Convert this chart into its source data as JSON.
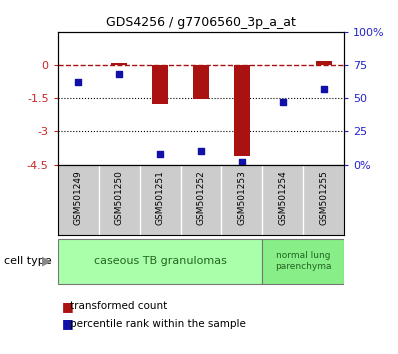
{
  "title": "GDS4256 / g7706560_3p_a_at",
  "samples": [
    "GSM501249",
    "GSM501250",
    "GSM501251",
    "GSM501252",
    "GSM501253",
    "GSM501254",
    "GSM501255"
  ],
  "transformed_count": [
    -0.02,
    0.1,
    -1.75,
    -1.55,
    -4.1,
    -0.02,
    0.2
  ],
  "percentile_rank": [
    62,
    68,
    8,
    10,
    2,
    47,
    57
  ],
  "ylim_left": [
    -4.5,
    1.5
  ],
  "ylim_right": [
    0,
    100
  ],
  "yticks_left": [
    0,
    -1.5,
    -3,
    -4.5
  ],
  "yticks_right": [
    0,
    25,
    50,
    75,
    100
  ],
  "ytick_labels_left": [
    "0",
    "-1.5",
    "-3",
    "-4.5"
  ],
  "ytick_labels_right": [
    "0%",
    "25",
    "50",
    "75",
    "100%"
  ],
  "hline_y": 0,
  "dotted_lines": [
    -1.5,
    -3
  ],
  "bar_color": "#aa1111",
  "scatter_color": "#1111aa",
  "bar_width": 0.4,
  "cell_types": [
    {
      "label": "caseous TB granulomas",
      "samples": [
        0,
        1,
        2,
        3,
        4
      ],
      "color": "#aaffaa"
    },
    {
      "label": "normal lung\nparenchyma",
      "samples": [
        5,
        6
      ],
      "color": "#88ee88"
    }
  ],
  "legend_items": [
    {
      "label": "transformed count",
      "color": "#aa1111"
    },
    {
      "label": "percentile rank within the sample",
      "color": "#1111aa"
    }
  ],
  "cell_type_label": "cell type",
  "background_color": "#ffffff",
  "plot_bg": "#ffffff",
  "tick_label_color_left": "#cc2222",
  "tick_label_color_right": "#2222cc",
  "sample_label_bg": "#cccccc",
  "sample_label_fontsize": 6.5,
  "title_fontsize": 9
}
